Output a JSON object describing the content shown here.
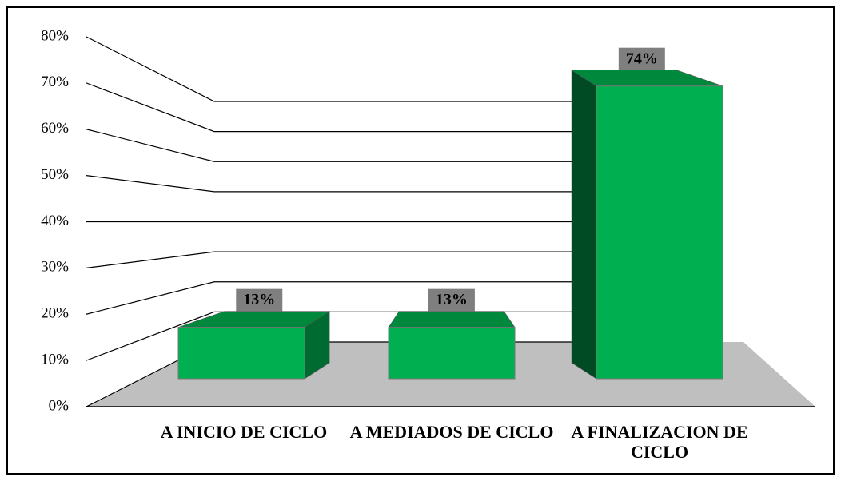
{
  "chart_data": {
    "type": "bar3d",
    "categories": [
      "A INICIO DE CICLO",
      "A MEDIADOS DE CICLO",
      "A FINALIZACION DE CICLO"
    ],
    "values": [
      13,
      13,
      74
    ],
    "value_labels": [
      "13%",
      "13%",
      "74%"
    ],
    "color": "#00b050",
    "ylim": [
      0,
      80
    ],
    "yticks": [
      {
        "value": 0,
        "label": "0%"
      },
      {
        "value": 10,
        "label": "10%"
      },
      {
        "value": 20,
        "label": "20%"
      },
      {
        "value": 30,
        "label": "30%"
      },
      {
        "value": 40,
        "label": "40%"
      },
      {
        "value": 50,
        "label": "50%"
      },
      {
        "value": 60,
        "label": "60%"
      },
      {
        "value": 70,
        "label": "70%"
      },
      {
        "value": 80,
        "label": "80%"
      }
    ],
    "grid": true
  }
}
